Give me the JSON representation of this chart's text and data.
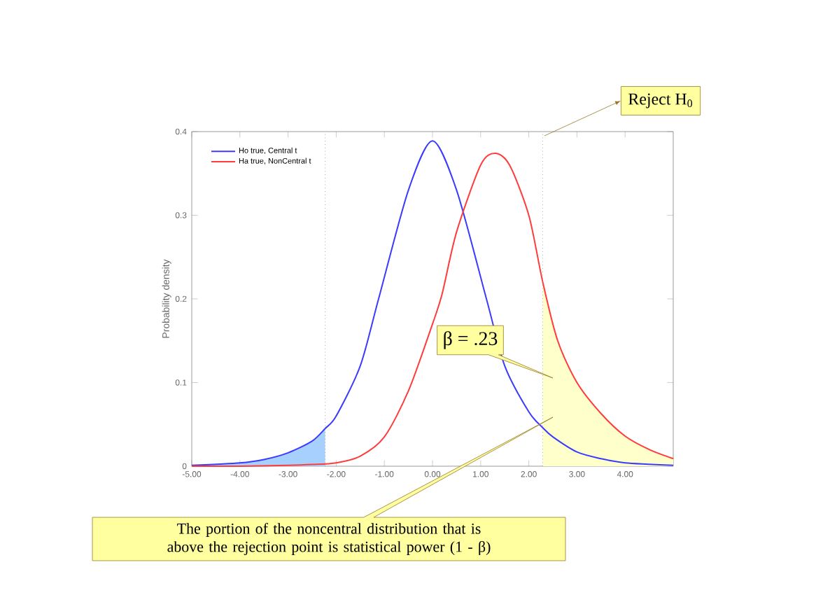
{
  "chart_data": {
    "type": "line",
    "ylabel": "Probability density",
    "xlim": [
      -5,
      5
    ],
    "ylim": [
      0,
      0.4
    ],
    "xticks": [
      {
        "value": -5,
        "label": "-5.00"
      },
      {
        "value": -4,
        "label": "-4.00"
      },
      {
        "value": -3,
        "label": "-3.00"
      },
      {
        "value": -2,
        "label": "-2.00"
      },
      {
        "value": -1,
        "label": "-1.00"
      },
      {
        "value": 0,
        "label": "0.00"
      },
      {
        "value": 1,
        "label": "1.00"
      },
      {
        "value": 2,
        "label": "2.00"
      },
      {
        "value": 3,
        "label": "3.00"
      },
      {
        "value": 4,
        "label": "4.00"
      }
    ],
    "yticks": [
      0,
      0.1,
      0.2,
      0.3,
      0.4
    ],
    "legend": "top left",
    "series": [
      {
        "type": "area",
        "color": "#a8d0ff",
        "x": [
          -5,
          -4,
          -3.5,
          -3,
          -2.5,
          -2.23
        ],
        "values": [
          0.001,
          0.004,
          0.008,
          0.016,
          0.03,
          0.045
        ]
      },
      {
        "type": "area",
        "color": "#ffffcc",
        "x": [
          2.29,
          2.6,
          3,
          3.5,
          4,
          4.5,
          5
        ],
        "values": [
          0.22,
          0.15,
          0.1,
          0.063,
          0.036,
          0.02,
          0.009
        ]
      },
      {
        "name": "Ho true, Central t",
        "color": "#3b3bff",
        "x": [
          -5,
          -4,
          -3.5,
          -3,
          -2.5,
          -2.23,
          -2,
          -1.5,
          -1.12,
          -0.5,
          0,
          0.5,
          1.12,
          1.5,
          2,
          2.29,
          2.5,
          3,
          3.5,
          4,
          5
        ],
        "values": [
          0.001,
          0.004,
          0.008,
          0.016,
          0.03,
          0.045,
          0.06,
          0.12,
          0.2,
          0.33,
          0.389,
          0.33,
          0.2,
          0.12,
          0.065,
          0.046,
          0.035,
          0.017,
          0.009,
          0.004,
          0.001
        ]
      },
      {
        "name": "Ha true, NonCentral t",
        "color": "#ff3b3b",
        "x": [
          -5,
          -4,
          -3,
          -2.5,
          -2,
          -1.5,
          -1,
          -0.5,
          0,
          0.2,
          0.5,
          1,
          1.3,
          1.6,
          2,
          2.29,
          2.6,
          3,
          3.5,
          4,
          4.5,
          5
        ],
        "values": [
          0,
          0,
          0.001,
          0.002,
          0.004,
          0.012,
          0.035,
          0.09,
          0.17,
          0.206,
          0.28,
          0.36,
          0.374,
          0.36,
          0.3,
          0.22,
          0.15,
          0.1,
          0.063,
          0.036,
          0.02,
          0.009
        ]
      }
    ],
    "ref_lines": [
      {
        "axis": "x",
        "value": -2.23,
        "color": "#808080",
        "line_style": "dotted"
      },
      {
        "axis": "x",
        "value": 2.29,
        "color": "#808080",
        "line_style": "dotted"
      }
    ],
    "annotations": [
      "Reject H$_{0}$",
      "β = .23",
      "The portion of the noncentral distribution that is above the rejection point is statistical power (1 - β)"
    ]
  }
}
